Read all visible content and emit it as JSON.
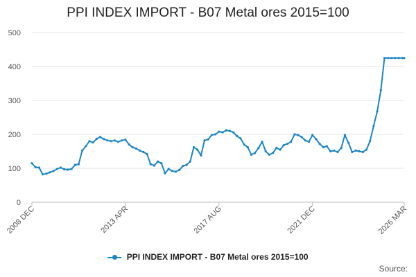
{
  "chart_data": {
    "type": "line",
    "title": "PPI INDEX IMPORT - B07 Metal ores 2015=100",
    "xlabel": "",
    "ylabel": "",
    "ylim": [
      0,
      500
    ],
    "yticks": [
      "0",
      "100",
      "200",
      "300",
      "400",
      "500"
    ],
    "xticks": [
      {
        "label": "2008 DEC",
        "date": "2008-12"
      },
      {
        "label": "2013 APR",
        "date": "2013-04"
      },
      {
        "label": "2017 AUG",
        "date": "2017-08"
      },
      {
        "label": "2021 DEC",
        "date": "2021-12"
      },
      {
        "label": "2026 MAR",
        "date": "2026-03"
      }
    ],
    "grid": "horizontal",
    "legend_position": "bottom",
    "color": "#1a85c6",
    "series": [
      {
        "name": "PPI INDEX IMPORT - B07 Metal ores 2015=100",
        "x": [
          "2008-12",
          "2009-02",
          "2009-04",
          "2009-06",
          "2009-08",
          "2009-10",
          "2009-12",
          "2010-02",
          "2010-04",
          "2010-06",
          "2010-08",
          "2010-10",
          "2010-12",
          "2011-02",
          "2011-04",
          "2011-06",
          "2011-08",
          "2011-10",
          "2011-12",
          "2012-02",
          "2012-04",
          "2012-06",
          "2012-08",
          "2012-10",
          "2012-12",
          "2013-02",
          "2013-04",
          "2013-06",
          "2013-08",
          "2013-10",
          "2013-12",
          "2014-02",
          "2014-04",
          "2014-06",
          "2014-08",
          "2014-10",
          "2014-12",
          "2015-02",
          "2015-04",
          "2015-06",
          "2015-08",
          "2015-10",
          "2015-12",
          "2016-02",
          "2016-04",
          "2016-06",
          "2016-08",
          "2016-10",
          "2016-12",
          "2017-02",
          "2017-04",
          "2017-06",
          "2017-08",
          "2017-10",
          "2017-12",
          "2018-02",
          "2018-04",
          "2018-06",
          "2018-08",
          "2018-10",
          "2018-12",
          "2019-02",
          "2019-04",
          "2019-06",
          "2019-08",
          "2019-10",
          "2019-12",
          "2020-02",
          "2020-04",
          "2020-06",
          "2020-08",
          "2020-10",
          "2020-12",
          "2021-02",
          "2021-04",
          "2021-06",
          "2021-08",
          "2021-10",
          "2021-12",
          "2022-02",
          "2022-04",
          "2022-06",
          "2022-08",
          "2022-10",
          "2022-12",
          "2023-02",
          "2023-04",
          "2023-06",
          "2023-08",
          "2023-10",
          "2023-12",
          "2024-02",
          "2024-04",
          "2024-06",
          "2024-08",
          "2024-10",
          "2024-12",
          "2025-02",
          "2025-04",
          "2025-06",
          "2025-08",
          "2025-10",
          "2025-12",
          "2026-02",
          "2026-03"
        ],
        "values": [
          115,
          103,
          102,
          82,
          84,
          88,
          92,
          98,
          102,
          97,
          96,
          98,
          110,
          112,
          152,
          165,
          180,
          176,
          187,
          192,
          186,
          182,
          180,
          182,
          178,
          182,
          184,
          170,
          162,
          158,
          152,
          148,
          142,
          112,
          108,
          120,
          115,
          85,
          98,
          92,
          90,
          95,
          107,
          110,
          120,
          162,
          155,
          138,
          182,
          185,
          198,
          200,
          208,
          206,
          212,
          210,
          206,
          195,
          188,
          170,
          162,
          140,
          145,
          160,
          178,
          150,
          140,
          145,
          160,
          155,
          168,
          172,
          178,
          200,
          198,
          192,
          182,
          178,
          198,
          186,
          172,
          162,
          165,
          150,
          152,
          148,
          160,
          198,
          175,
          148,
          152,
          150,
          148,
          155,
          180,
          225,
          268,
          330,
          425,
          425,
          425,
          425,
          425,
          425,
          425
        ]
      }
    ]
  },
  "legend": {
    "label": "PPI INDEX IMPORT - B07 Metal ores 2015=100"
  },
  "footer": {
    "source_label": "Source:"
  }
}
